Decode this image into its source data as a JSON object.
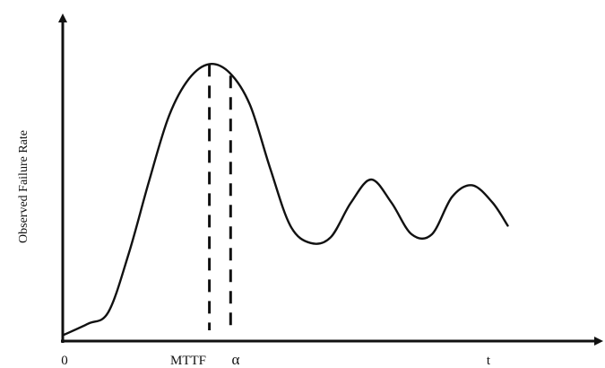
{
  "chart_data": {
    "type": "line",
    "ylabel": "Observed Failure Rate",
    "x_tick_labels": {
      "origin": "0",
      "mttf": "MTTF",
      "alpha": "α",
      "t": "t"
    },
    "curve_points": [
      [
        0.0,
        0.02
      ],
      [
        0.05,
        0.06
      ],
      [
        0.09,
        0.1
      ],
      [
        0.13,
        0.3
      ],
      [
        0.17,
        0.55
      ],
      [
        0.21,
        0.78
      ],
      [
        0.25,
        0.91
      ],
      [
        0.29,
        0.96
      ],
      [
        0.33,
        0.93
      ],
      [
        0.37,
        0.82
      ],
      [
        0.41,
        0.6
      ],
      [
        0.45,
        0.4
      ],
      [
        0.49,
        0.34
      ],
      [
        0.53,
        0.36
      ],
      [
        0.57,
        0.48
      ],
      [
        0.61,
        0.56
      ],
      [
        0.65,
        0.48
      ],
      [
        0.69,
        0.37
      ],
      [
        0.73,
        0.37
      ],
      [
        0.77,
        0.5
      ],
      [
        0.81,
        0.54
      ],
      [
        0.85,
        0.48
      ],
      [
        0.88,
        0.4
      ]
    ],
    "reference_lines": [
      {
        "label": "MTTF",
        "x": 0.29,
        "y": 0.96,
        "style": "dashed"
      },
      {
        "label": "α",
        "x": 0.332,
        "y": 0.92,
        "style": "dashed"
      }
    ],
    "xlim": [
      0,
      1.06
    ],
    "ylim": [
      0,
      1.12
    ],
    "grid": false,
    "legend": "none",
    "colors": {
      "line": "#111111",
      "background": "#ffffff"
    }
  }
}
